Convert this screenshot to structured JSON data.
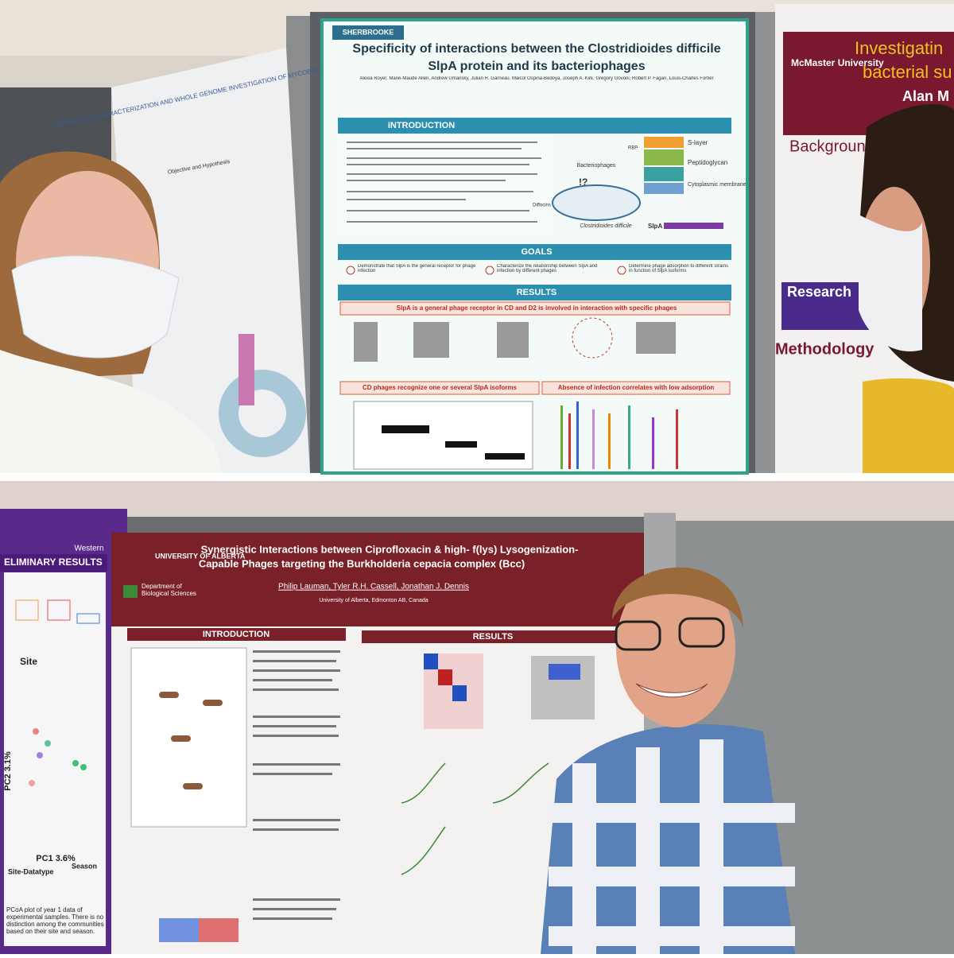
{
  "top_photo": {
    "left_poster": {
      "title": "PHENOTYPIC CHARACTERIZATION AND WHOLE GENOME INVESTIGATION OF MYCOBACTERIUM",
      "section": "Objective and Hypothesis"
    },
    "center_poster": {
      "university": "SHERBROOKE",
      "title_line1": "Specificity of interactions between the Clostridioides difficile",
      "title_line2": "SlpA protein and its bacteriophages",
      "authors": "Alexia Royer, Marie-Maude Allen, Andrew Umansky, Julian R. Garneau, Maicol Ospina-Bedoya, Joseph A. Kirk, Gregory Govoni, Robert P. Fagan, Louis-Charles Fortier",
      "introduction": "INTRODUCTION",
      "goals_heading": "GOALS",
      "goals": [
        "Demonstrate that SlpA is the general receptor for phage infection",
        "Characterize the relationship between SlpA and infection by different phages",
        "Determine phage adsorption to different strains in function of SlpA isoforms"
      ],
      "results_heading": "RESULTS",
      "results": [
        "SlpA is a general phage receptor in CD and D2 is involved in interaction with specific phages",
        "CD phages recognize one or several SlpA isoforms",
        "Absence of infection correlates with low adsorption"
      ],
      "diagram": {
        "s_layer": "S-layer",
        "peptidoglycan": "Peptidoglycan",
        "membrane": "Cytoplasmic membrane",
        "bacteriophages": "Bacteriophages",
        "bacterium": "Clostridioides difficile",
        "rbp": "RBP",
        "slpa": "SlpA",
        "diffocins": "Diffocins"
      }
    },
    "right_poster": {
      "university": "McMaster University",
      "title_line1": "Investigatin",
      "title_line2": "bacterial su",
      "author": "Alan M",
      "background": "Backgroun",
      "research": "Research",
      "methodology": "Methodology"
    }
  },
  "bottom_photo": {
    "left_poster": {
      "university": "Western",
      "heading": "ELIMINARY RESULTS",
      "site": "Site",
      "pc1": "PC1 3.6%",
      "pc2": "PC2 3.1%",
      "datatype": "Site-Datatype",
      "season": "Season",
      "caption": "PCoA plot of year 1 data of experimental samples. There is no distinction among the communities based on their site and season."
    },
    "center_poster": {
      "university": "UNIVERSITY OF ALBERTA",
      "department": "Department of Biological Sciences",
      "title_line1": "Synergistic Interactions between Ciprofloxacin & high- f(lys) Lysogenization-",
      "title_line2": "Capable Phages targeting the Burkholderia cepacia complex (Bcc)",
      "authors": "Philip Lauman, Tyler R.H. Cassell, Jonathan J. Dennis",
      "affiliation": "University of Alberta, Edmonton AB, Canada",
      "introduction": "INTRODUCTION",
      "results": "RESULTS"
    }
  }
}
